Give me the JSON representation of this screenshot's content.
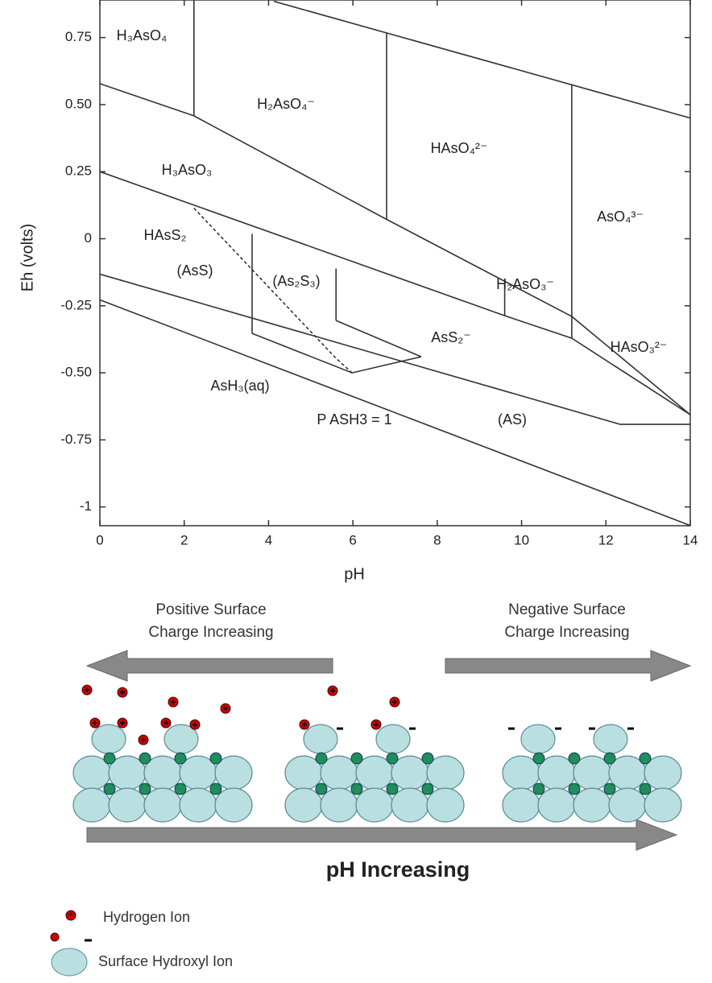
{
  "chart_data": {
    "type": "line",
    "xlabel": "pH",
    "ylabel": "Eh (volts)",
    "xlim": [
      0,
      14
    ],
    "ylim": [
      -1.07,
      0.89
    ],
    "xticks": [
      0,
      2,
      4,
      6,
      8,
      10,
      12,
      14
    ],
    "yticks": [
      0.75,
      {
        "value": 0.5,
        "label": "0.50"
      },
      0.25,
      0,
      -0.25,
      {
        "value": -0.5,
        "label": "-0.50"
      },
      -0.75,
      -1
    ],
    "color": "#333333",
    "series": [
      {
        "x": [
          4.13,
          14
        ],
        "values": [
          0.885,
          0.45
        ]
      },
      {
        "x": [
          0,
          2.23,
          6.8,
          11.19,
          14
        ],
        "values": [
          0.578,
          0.458,
          0.072,
          -0.29,
          -0.656
        ]
      },
      {
        "x": [
          2.23,
          2.23
        ],
        "values": [
          0.89,
          0.458
        ]
      },
      {
        "x": [
          6.8,
          6.8
        ],
        "values": [
          0.767,
          0.072
        ]
      },
      {
        "x": [
          11.19,
          11.19
        ],
        "values": [
          0.574,
          -0.371
        ]
      },
      {
        "x": [
          0,
          9.6,
          11.19,
          14
        ],
        "values": [
          0.25,
          -0.287,
          -0.371,
          -0.656
        ]
      },
      {
        "x": [
          9.6,
          9.6
        ],
        "values": [
          -0.168,
          -0.287
        ]
      },
      {
        "x": [
          0,
          12.34,
          14
        ],
        "values": [
          -0.132,
          -0.692,
          -0.692
        ]
      },
      {
        "x": [
          0,
          14
        ],
        "values": [
          -0.228,
          -1.069
        ]
      },
      {
        "x": [
          3.61,
          3.61
        ],
        "values": [
          0.018,
          -0.353
        ]
      },
      {
        "x": [
          5.6,
          5.6
        ],
        "values": [
          -0.111,
          -0.305
        ]
      },
      {
        "x": [
          3.61,
          5.98,
          7.62
        ],
        "values": [
          -0.353,
          -0.5,
          -0.44
        ]
      },
      {
        "x": [
          5.6,
          7.62
        ],
        "values": [
          -0.305,
          -0.44
        ]
      },
      {
        "x": [
          2.23,
          5.6,
          5.98
        ],
        "values": [
          0.114,
          -0.446,
          -0.5
        ],
        "style": "dashed"
      }
    ],
    "annotations": [
      "H₃AsO₄",
      "H₂AsO₄⁻",
      "HAsO₄²⁻",
      "AsO₄³⁻",
      "H₃AsO₃",
      "HAsS₂",
      "(AsS)",
      "(As₂S₃)",
      "H₂AsO₃⁻",
      "AsS₂⁻",
      "HAsO₃²⁻",
      "AsH₃(aq)",
      "P ASH3 = 1",
      "(AS)"
    ]
  },
  "schematic": {
    "left_caption": [
      "Positive Surface",
      "Charge Increasing"
    ],
    "right_caption": [
      "Negative Surface",
      "Charge Increasing"
    ],
    "bottom_caption": "pH Increasing",
    "legend": [
      "Hydrogen Ion",
      "Surface Hydroxyl Ion"
    ]
  }
}
